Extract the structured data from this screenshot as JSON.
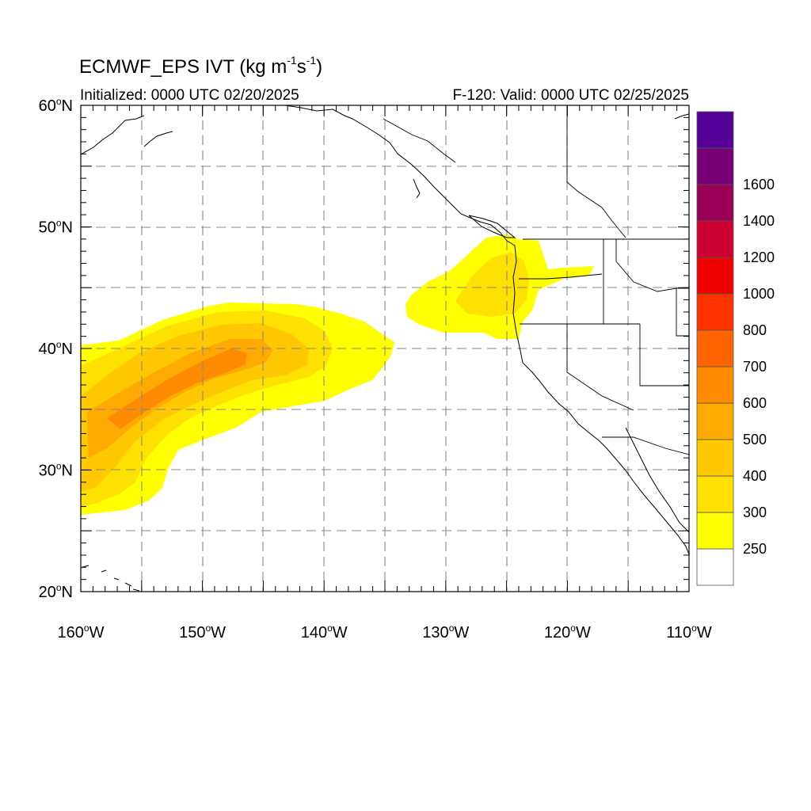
{
  "title": {
    "prefix": "ECMWF_EPS IVT (kg m",
    "exp1": "-1",
    "mid": "s",
    "exp2": "-1",
    "suffix": ")"
  },
  "initialized": "Initialized: 0000 UTC 02/20/2025",
  "valid": "F-120: Valid: 0000 UTC 02/25/2025",
  "lat_labels": [
    {
      "deg": "60",
      "hemi": "N"
    },
    {
      "deg": "50",
      "hemi": "N"
    },
    {
      "deg": "40",
      "hemi": "N"
    },
    {
      "deg": "30",
      "hemi": "N"
    },
    {
      "deg": "20",
      "hemi": "N"
    }
  ],
  "lon_labels": [
    {
      "deg": "160",
      "hemi": "W"
    },
    {
      "deg": "150",
      "hemi": "W"
    },
    {
      "deg": "140",
      "hemi": "W"
    },
    {
      "deg": "130",
      "hemi": "W"
    },
    {
      "deg": "120",
      "hemi": "W"
    },
    {
      "deg": "110",
      "hemi": "W"
    }
  ],
  "colorbar": {
    "labels": [
      "250",
      "300",
      "400",
      "500",
      "600",
      "700",
      "800",
      "1000",
      "1200",
      "1400",
      "1600"
    ],
    "colors": [
      "#ffffff",
      "#ffff00",
      "#ffe100",
      "#ffc800",
      "#ffaa00",
      "#ff8c00",
      "#ff6400",
      "#ff3200",
      "#ee0000",
      "#cc0033",
      "#990055",
      "#770077",
      "#550099"
    ]
  },
  "map": {
    "lon_range": [
      -160,
      -110
    ],
    "lat_range": [
      20,
      60
    ],
    "grid_interval_deg": 5,
    "grid": "dashed",
    "ivt_contour_levels": [
      250,
      300,
      400,
      500,
      600,
      700,
      800,
      1000,
      1200,
      1400,
      1600
    ]
  }
}
